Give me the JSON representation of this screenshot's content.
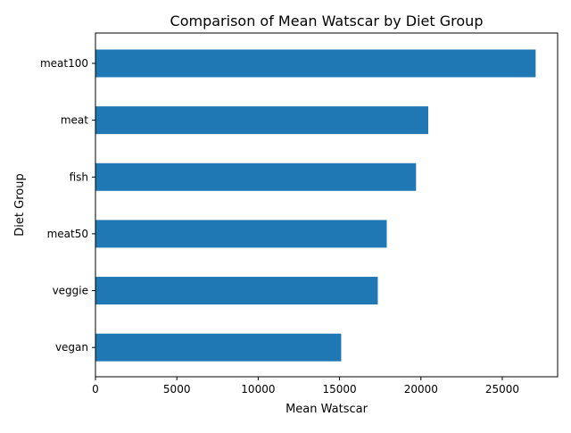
{
  "chart_data": {
    "type": "bar",
    "orientation": "horizontal",
    "title": "Comparison of Mean Watscar by Diet Group",
    "xlabel": "Mean Watscar",
    "ylabel": "Diet Group",
    "categories": [
      "vegan",
      "veggie",
      "meat50",
      "fish",
      "meat",
      "meat100"
    ],
    "values": [
      15100,
      17350,
      17900,
      19700,
      20450,
      27050
    ],
    "xlim": [
      0,
      28400
    ],
    "xticks": [
      0,
      5000,
      10000,
      15000,
      20000,
      25000
    ],
    "xtick_labels": [
      "0",
      "5000",
      "10000",
      "15000",
      "20000",
      "25000"
    ],
    "bar_color": "#1f77b4",
    "grid": false,
    "legend": null
  }
}
